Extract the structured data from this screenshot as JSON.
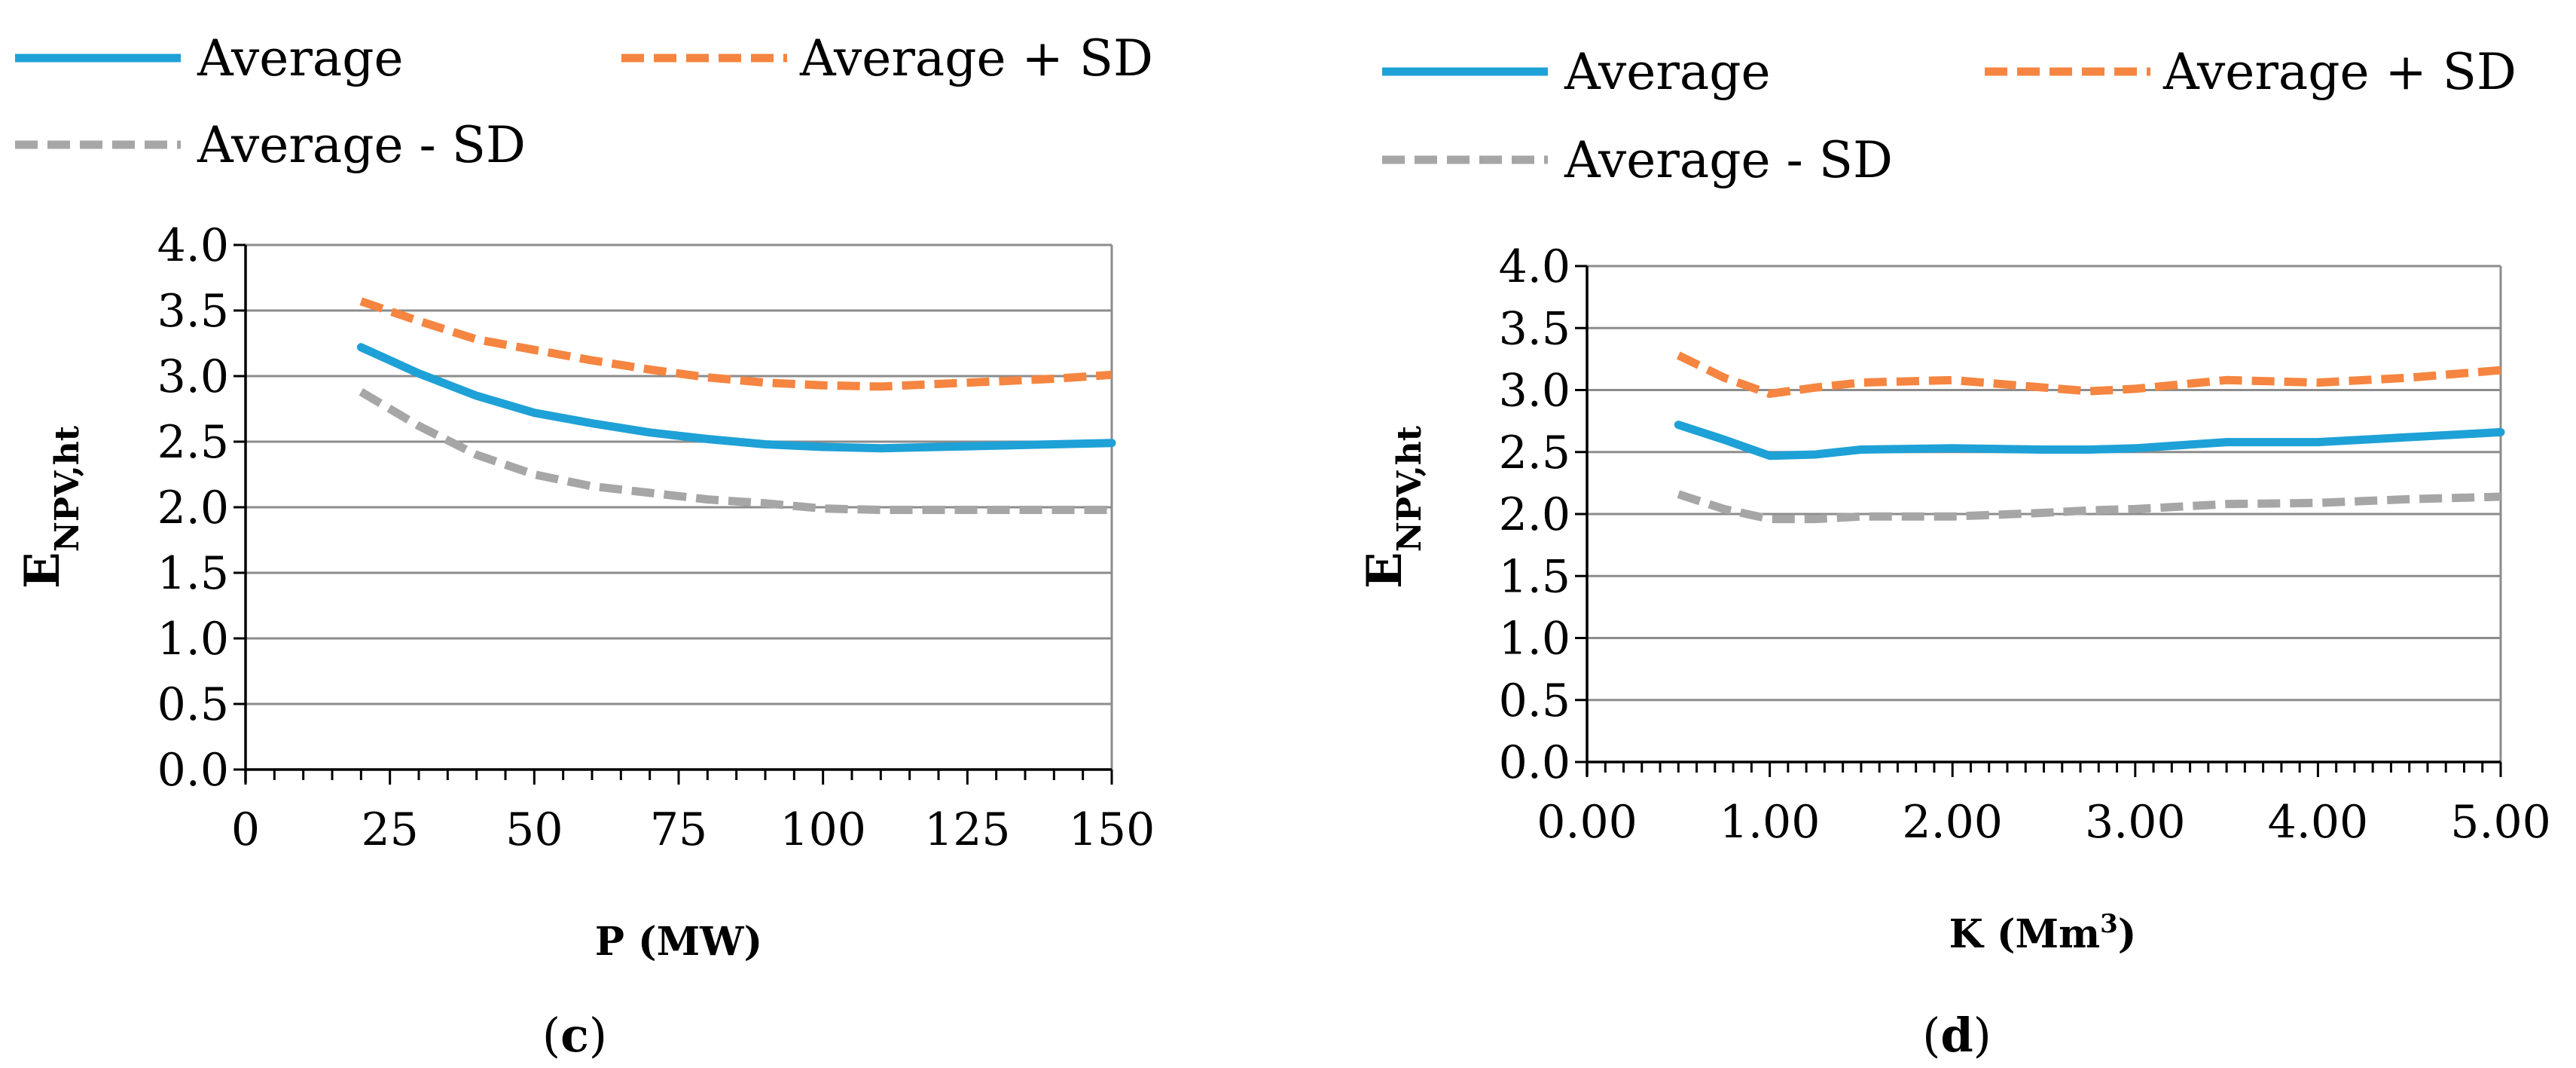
{
  "chart_data": [
    {
      "type": "line",
      "panel_label": "c",
      "xlabel": "P (MW)",
      "ylabel": "E",
      "ylabel_subscript": "NPV,ht",
      "xlim": [
        0,
        150
      ],
      "ylim": [
        0,
        4
      ],
      "x_ticks": [
        "0",
        "25",
        "50",
        "75",
        "100",
        "125",
        "150"
      ],
      "y_ticks": [
        "0.0",
        "0.5",
        "1.0",
        "1.5",
        "2.0",
        "2.5",
        "3.0",
        "3.5",
        "4.0"
      ],
      "grid": true,
      "legend": [
        {
          "label": "Average",
          "color": "#1ea1d6",
          "style": "solid"
        },
        {
          "label": "Average  + SD",
          "color": "#f58540",
          "style": "dashed"
        },
        {
          "label": "Average - SD",
          "color": "#a6a6a6",
          "style": "dashed"
        }
      ],
      "x": [
        20,
        30,
        40,
        50,
        60,
        70,
        80,
        90,
        100,
        110,
        120,
        130,
        140,
        150
      ],
      "series": [
        {
          "name": "Average",
          "values": [
            3.22,
            3.02,
            2.85,
            2.72,
            2.64,
            2.57,
            2.52,
            2.48,
            2.46,
            2.45,
            2.46,
            2.47,
            2.48,
            2.49
          ]
        },
        {
          "name": "Average  + SD",
          "values": [
            3.57,
            3.42,
            3.28,
            3.2,
            3.12,
            3.05,
            2.99,
            2.95,
            2.93,
            2.92,
            2.94,
            2.96,
            2.98,
            3.01
          ]
        },
        {
          "name": "Average - SD",
          "values": [
            2.88,
            2.62,
            2.4,
            2.25,
            2.16,
            2.11,
            2.06,
            2.03,
            1.99,
            1.98,
            1.98,
            1.98,
            1.98,
            1.98
          ]
        }
      ]
    },
    {
      "type": "line",
      "panel_label": "d",
      "xlabel": "K (Mm",
      "xlabel_sup": "3",
      "xlabel_end": ")",
      "ylabel": "E",
      "ylabel_subscript": "NPV,ht",
      "xlim": [
        0,
        5
      ],
      "ylim": [
        0,
        4
      ],
      "x_ticks": [
        "0.00",
        "1.00",
        "2.00",
        "3.00",
        "4.00",
        "5.00"
      ],
      "y_ticks": [
        "0.0",
        "0.5",
        "1.0",
        "1.5",
        "2.0",
        "2.5",
        "3.0",
        "3.5",
        "4.0"
      ],
      "grid": true,
      "legend": [
        {
          "label": "Average",
          "color": "#1ea1d6",
          "style": "solid"
        },
        {
          "label": "Average  + SD",
          "color": "#f58540",
          "style": "dashed"
        },
        {
          "label": "Average - SD",
          "color": "#a6a6a6",
          "style": "dashed"
        }
      ],
      "x": [
        0.5,
        0.75,
        1.0,
        1.25,
        1.5,
        2.0,
        2.5,
        2.75,
        3.0,
        3.5,
        4.0,
        4.5,
        5.0
      ],
      "series": [
        {
          "name": "Average",
          "values": [
            2.72,
            2.6,
            2.47,
            2.48,
            2.52,
            2.53,
            2.52,
            2.52,
            2.53,
            2.58,
            2.58,
            2.62,
            2.66
          ]
        },
        {
          "name": "Average  + SD",
          "values": [
            3.28,
            3.1,
            2.97,
            3.02,
            3.06,
            3.08,
            3.02,
            2.99,
            3.01,
            3.08,
            3.06,
            3.1,
            3.16
          ]
        },
        {
          "name": "Average - SD",
          "values": [
            2.16,
            2.04,
            1.96,
            1.96,
            1.98,
            1.98,
            2.01,
            2.03,
            2.04,
            2.08,
            2.09,
            2.12,
            2.14
          ]
        }
      ]
    }
  ]
}
